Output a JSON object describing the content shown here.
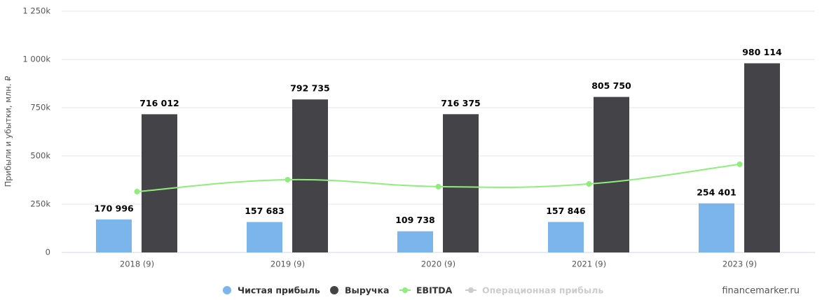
{
  "chart_data": {
    "type": "bar_line",
    "y_axis_label": "Прибыли и убытки, млн. ₽",
    "categories": [
      "2018 (9)",
      "2019 (9)",
      "2020 (9)",
      "2021 (9)",
      "2023 (9)"
    ],
    "series": [
      {
        "name": "Чистая прибыль",
        "type": "bar",
        "color": "#7cb5ec",
        "values": [
          170996,
          157683,
          109738,
          157846,
          254401
        ],
        "value_labels": [
          "170 996",
          "157 683",
          "109 738",
          "157 846",
          "254 401"
        ]
      },
      {
        "name": "Выручка",
        "type": "bar",
        "color": "#434348",
        "values": [
          716012,
          792735,
          716375,
          805750,
          980114
        ],
        "value_labels": [
          "716 012",
          "792 735",
          "716 375",
          "805 750",
          "980 114"
        ]
      },
      {
        "name": "EBITDA",
        "type": "line",
        "color": "#90ed7d",
        "values": [
          315000,
          377000,
          341000,
          355000,
          457000
        ]
      },
      {
        "name": "Операционная прибыль",
        "type": "line",
        "color": "#cccccc",
        "visible": false,
        "values": [
          null,
          null,
          null,
          null,
          null
        ]
      }
    ],
    "ylim": [
      0,
      1250000
    ],
    "yticks": [
      0,
      {
        "value": 250000,
        "label": "250k"
      },
      {
        "value": 500000,
        "label": "500k"
      },
      {
        "value": 750000,
        "label": "750k"
      },
      {
        "value": 1000000,
        "label": "1 000k"
      },
      {
        "value": 1250000,
        "label": "1 250k"
      }
    ],
    "grid": true,
    "legend": "bottom",
    "credit": "financemarker.ru"
  }
}
